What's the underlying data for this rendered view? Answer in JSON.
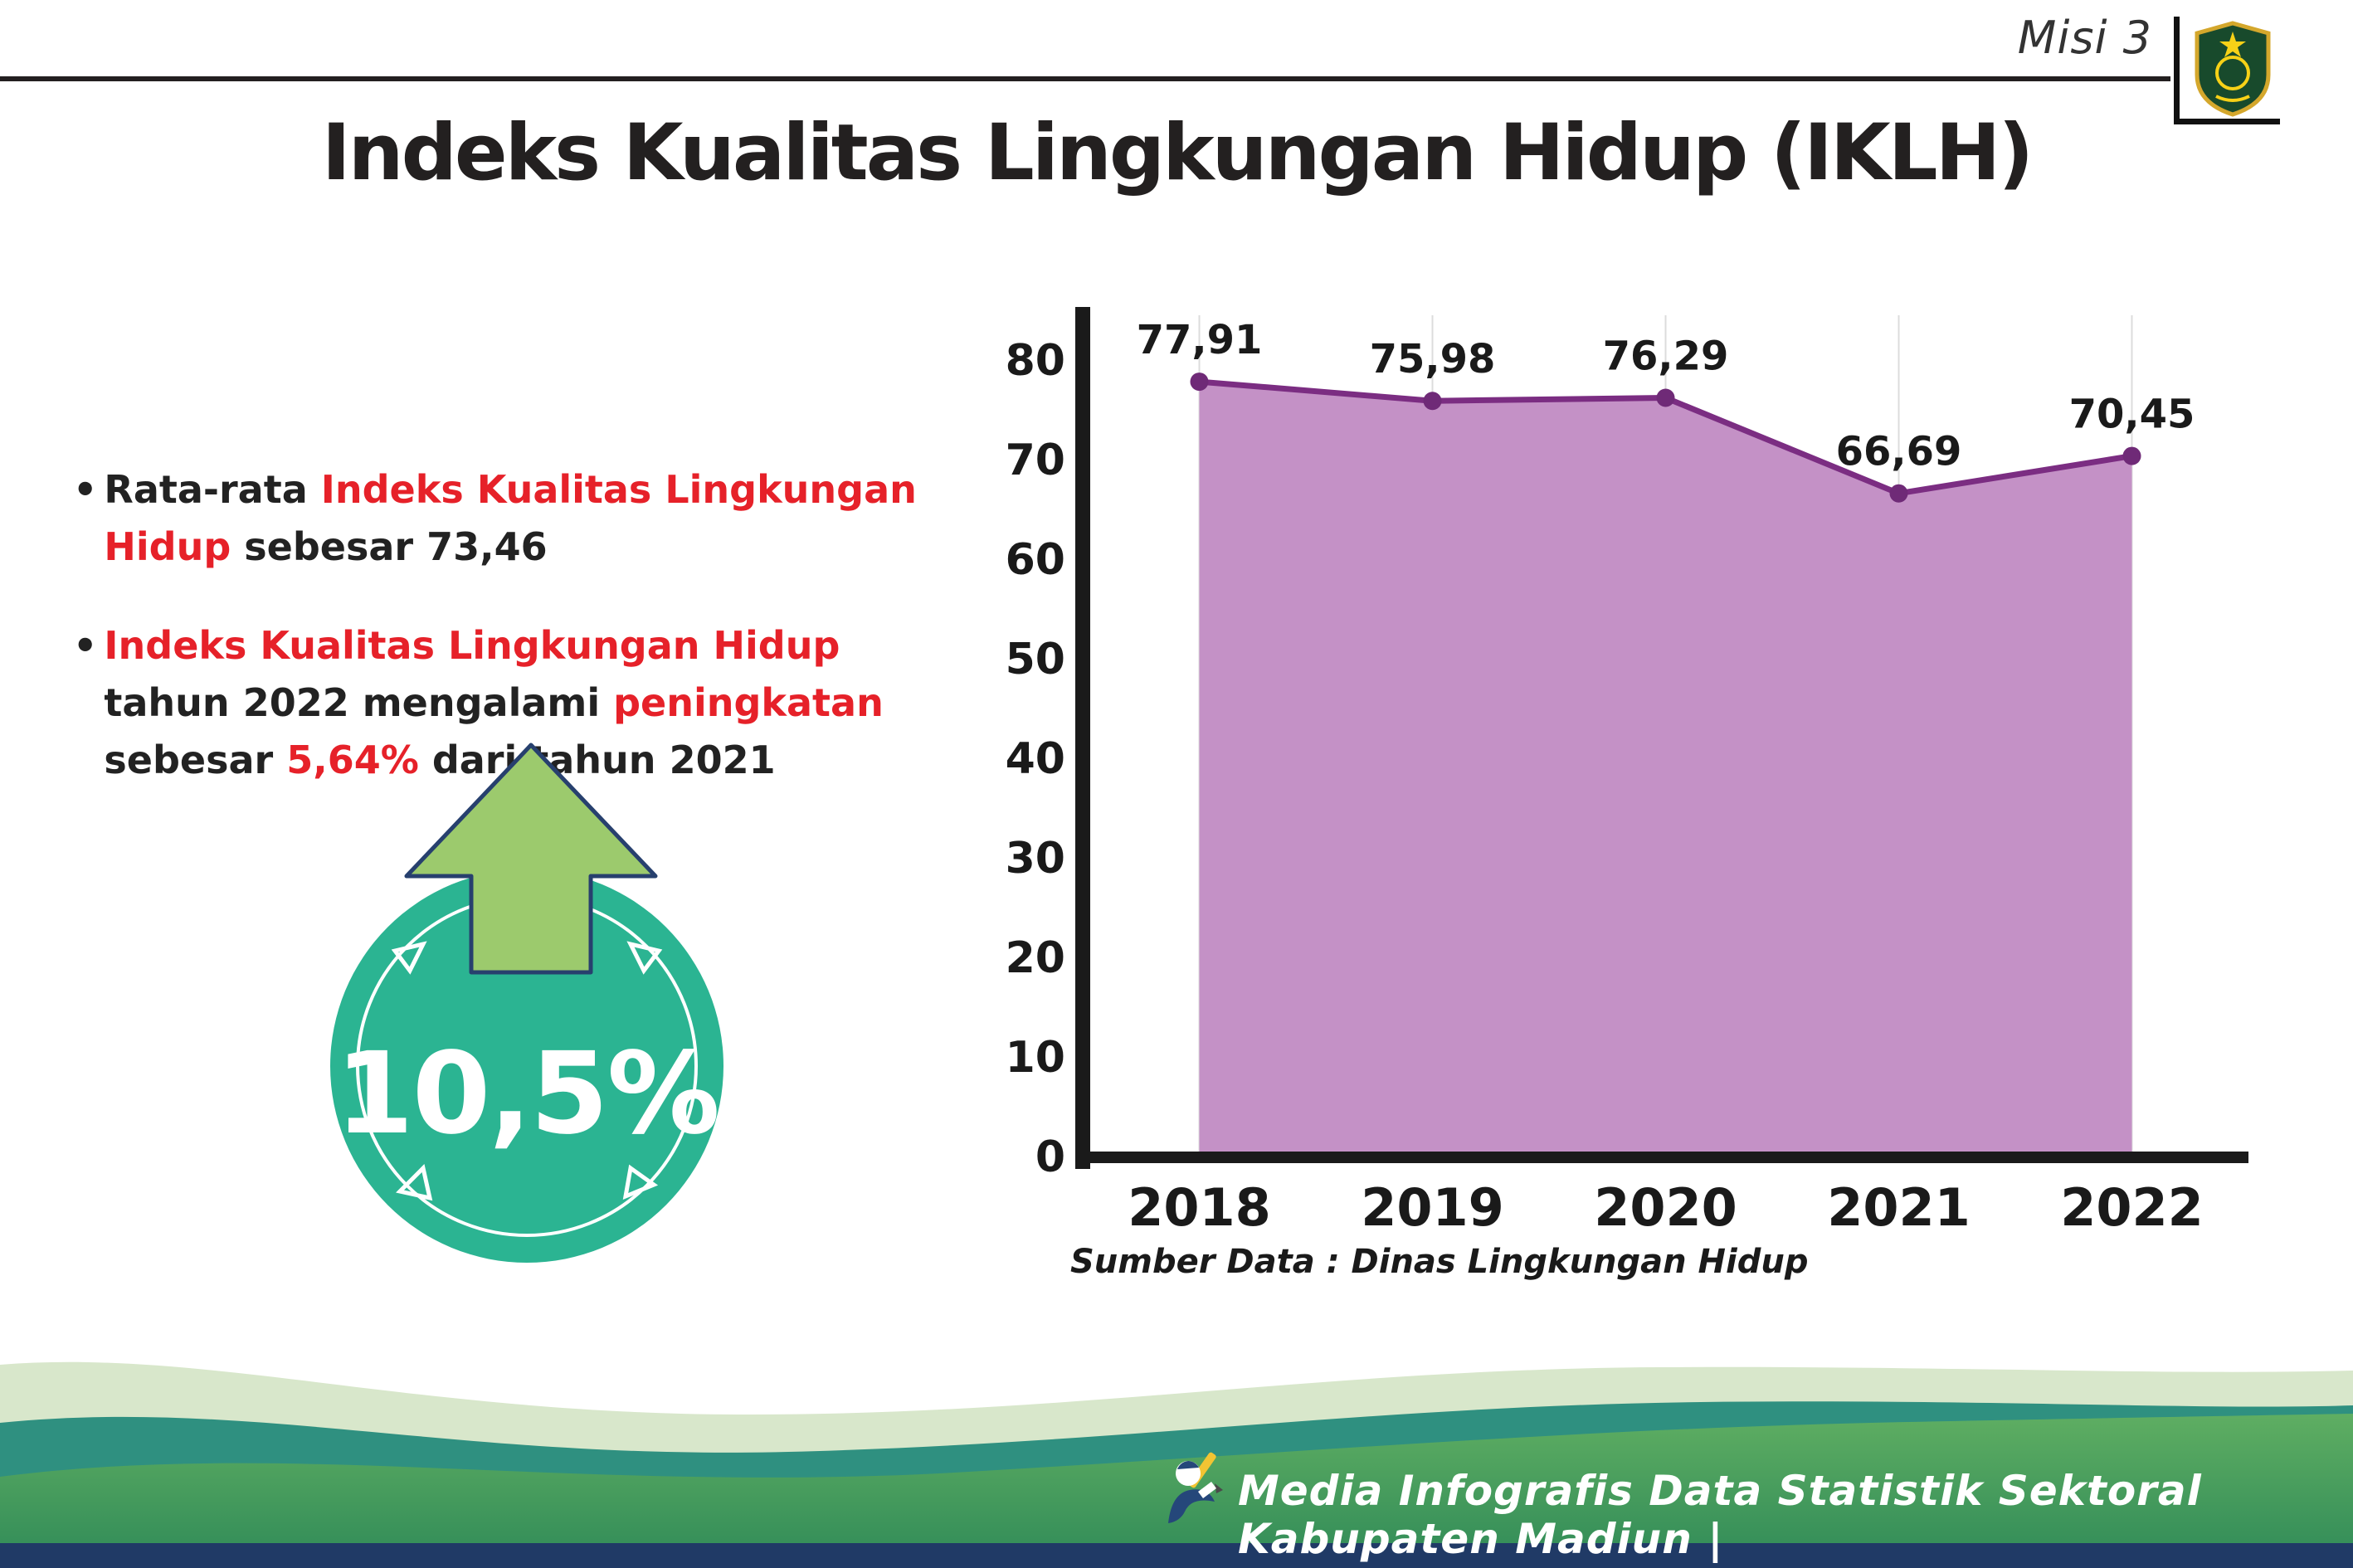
{
  "page": {
    "misi_label": "Misi 3",
    "title": "Indeks Kualitas Lingkungan Hidup (IKLH)",
    "source_note": "Sumber Data : Dinas Lingkungan Hidup",
    "footer_text": "Media Infografis Data Statistik Sektoral Kabupaten Madiun |"
  },
  "bullets": [
    {
      "segments": [
        {
          "t": "Rata-rata ",
          "c": "black"
        },
        {
          "t": "Indeks Kualitas Lingkungan Hidup",
          "c": "red"
        },
        {
          "t": " sebesar 73,46",
          "c": "black"
        }
      ]
    },
    {
      "segments": [
        {
          "t": "Indeks Kualitas Lingkungan Hidup",
          "c": "red"
        },
        {
          "t": " tahun 2022 mengalami ",
          "c": "black"
        },
        {
          "t": "peningkatan",
          "c": "red"
        },
        {
          "t": " sebesar ",
          "c": "black"
        },
        {
          "t": "5,64%",
          "c": "red"
        },
        {
          "t": " dari tahun 2021",
          "c": "black"
        }
      ]
    }
  ],
  "badge": {
    "value": "10,5%",
    "circle_color": "#2bb492",
    "arrow_color": "#9cca6d",
    "arrow_outline": "#27406e"
  },
  "chart_data": {
    "type": "area",
    "categories": [
      "2018",
      "2019",
      "2020",
      "2021",
      "2022"
    ],
    "values": [
      77.91,
      75.98,
      76.29,
      66.69,
      70.45
    ],
    "value_labels": [
      "77,91",
      "75,98",
      "76,29",
      "66,69",
      "70,45"
    ],
    "title": "",
    "xlabel": "",
    "ylabel": "",
    "ylim": [
      0,
      80
    ],
    "yticks": [
      0,
      10,
      20,
      30,
      40,
      50,
      60,
      70,
      80
    ],
    "grid": "vertical-light",
    "legend": "none",
    "area_fill": "#c491c6",
    "line_color": "#7b2d82",
    "point_color": "#6f2a77",
    "axis_color": "#1a1a1a",
    "grid_color": "#dcdcdc"
  },
  "colors": {
    "accent_red": "#e62129",
    "footer_pale": "#d8e7cb",
    "footer_teal": "#2f9080",
    "footer_green_top": "#5fae62",
    "footer_green_bottom": "#2f8a58",
    "footer_navy": "#203a66"
  }
}
